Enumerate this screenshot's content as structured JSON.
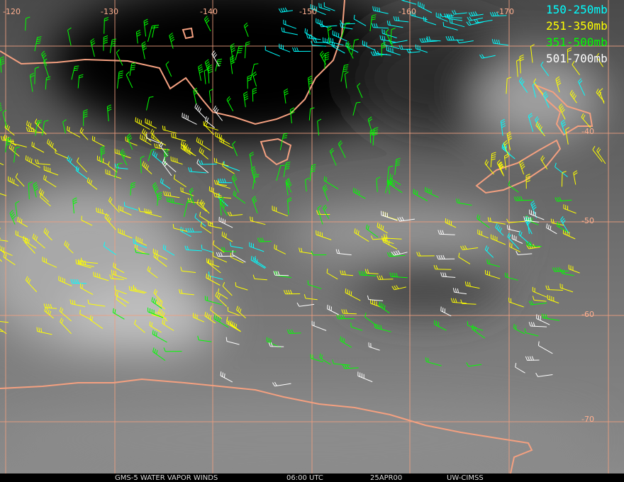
{
  "map": {
    "longitude_labels": [
      "-120",
      "-130",
      "-140",
      "-150",
      "-160",
      "-170"
    ],
    "latitude_labels": [
      "-40",
      "-50",
      "-60",
      "-70"
    ]
  },
  "legend": [
    {
      "label": "150-250mb",
      "color": "#00ffff"
    },
    {
      "label": "251-350mb",
      "color": "#ffff00"
    },
    {
      "label": "351-500mb",
      "color": "#00ff00"
    },
    {
      "label": "501-700mb",
      "color": "#ffffff"
    }
  ],
  "footer": {
    "product": "GMS-5 WATER VAPOR WINDS",
    "time": "06:00 UTC",
    "date": "25APR00",
    "source": "UW-CIMSS"
  }
}
